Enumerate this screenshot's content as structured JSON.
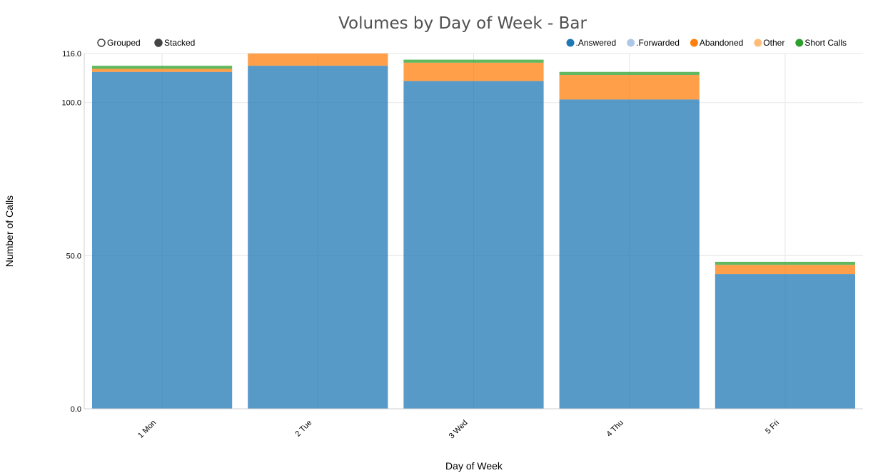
{
  "chart_data": {
    "type": "bar",
    "mode": "stacked",
    "title": "Volumes by Day of Week - Bar",
    "xlabel": "Day of Week",
    "ylabel": "Number of Calls",
    "categories": [
      "1 Mon",
      "2 Tue",
      "3 Wed",
      "4 Thu",
      "5 Fri"
    ],
    "series": [
      {
        "name": ".Answered",
        "color": "#1f77b4",
        "values": [
          110,
          112,
          107,
          101,
          44
        ]
      },
      {
        "name": ".Forwarded",
        "color": "#aec7e8",
        "values": [
          0,
          0,
          0,
          0,
          0
        ]
      },
      {
        "name": "Abandoned",
        "color": "#ff7f0e",
        "values": [
          1,
          4,
          6,
          8,
          3
        ]
      },
      {
        "name": "Other",
        "color": "#ffbb78",
        "values": [
          0,
          0,
          0,
          0,
          0
        ]
      },
      {
        "name": "Short Calls",
        "color": "#2ca02c",
        "values": [
          1,
          0,
          1,
          1,
          1
        ]
      }
    ],
    "ylim": [
      0,
      116
    ],
    "yticks": [
      "0.0",
      "50.0",
      "100.0",
      "116.0"
    ],
    "grid": true,
    "legend_position": "top-right"
  },
  "controls": {
    "grouped_label": "Grouped",
    "stacked_label": "Stacked",
    "selected": "stacked"
  }
}
